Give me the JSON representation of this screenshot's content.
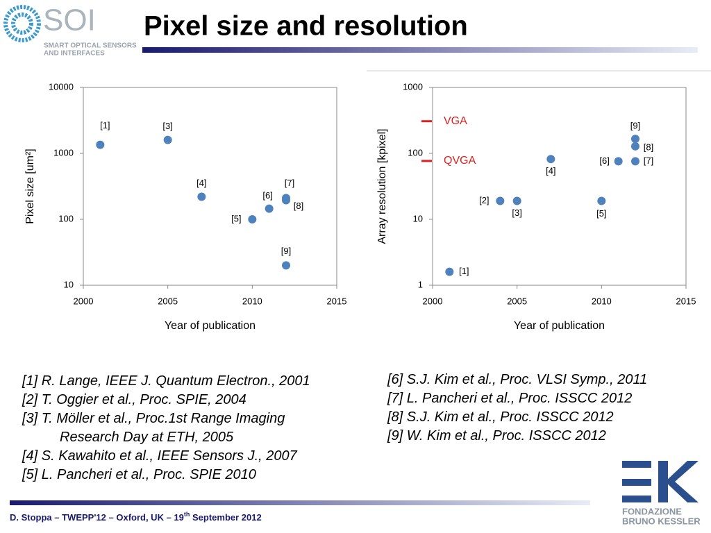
{
  "header": {
    "title": "Pixel size and resolution",
    "logo_main": "SOI",
    "logo_line1": "SMART OPTICAL SENSORS",
    "logo_line2": "AND INTERFACES"
  },
  "chart_data": [
    {
      "type": "scatter",
      "x_label": "Year of publication",
      "y_label": "Pixel size [um²]",
      "color": "#4f81bd",
      "log_y": true,
      "xlim": [
        2000,
        2015
      ],
      "xticks": [
        2000,
        2005,
        2010,
        2015
      ],
      "ylim": [
        10,
        10000
      ],
      "yticks": [
        10,
        100,
        1000,
        10000
      ],
      "x": [
        2001,
        2005,
        2007,
        2010,
        2011,
        2012,
        2012,
        2012
      ],
      "values": [
        1350,
        1600,
        220,
        100,
        145,
        210,
        195,
        20
      ],
      "point_labels": [
        "[1]",
        "[3]",
        "[4]",
        "[5]",
        "[6]",
        "[7]",
        "[8]",
        "[9]"
      ]
    },
    {
      "type": "scatter",
      "x_label": "Year of publication",
      "y_label": "Array resolution [kpixel]",
      "color": "#4f81bd",
      "log_y": true,
      "xlim": [
        2000,
        2015
      ],
      "xticks": [
        2000,
        2005,
        2010,
        2015
      ],
      "ylim": [
        1,
        1000
      ],
      "yticks": [
        1,
        10,
        100,
        1000
      ],
      "x": [
        2001,
        2004,
        2005,
        2007,
        2010,
        2011,
        2012,
        2012,
        2012
      ],
      "values": [
        1.6,
        19,
        19,
        82,
        19,
        76,
        76,
        128,
        166
      ],
      "point_labels": [
        "[1]",
        "[2]",
        "[3]",
        "[4]",
        "[5]",
        "[6]",
        "[7]",
        "[8]",
        "[9]"
      ],
      "reference_lines": [
        {
          "label": "VGA",
          "value": 307.2,
          "color": "#e02020"
        },
        {
          "label": "QVGA",
          "value": 76.8,
          "color": "#e02020"
        }
      ]
    }
  ],
  "references_left": [
    {
      "lines": [
        "[1] R. Lange, IEEE J. Quantum Electron., 2001"
      ]
    },
    {
      "lines": [
        "[2] T. Oggier et al., Proc. SPIE, 2004"
      ]
    },
    {
      "lines": [
        "[3] T. Möller et al., Proc.1st Range Imaging",
        "Research Day at ETH, 2005"
      ]
    },
    {
      "lines": [
        "[4] S. Kawahito et al., IEEE Sensors J., 2007"
      ]
    },
    {
      "lines": [
        "[5] L. Pancheri et al., Proc. SPIE 2010"
      ]
    }
  ],
  "references_right": [
    {
      "lines": [
        "[6] S.J. Kim et al., Proc. VLSI Symp., 2011"
      ]
    },
    {
      "lines": [
        "[7] L. Pancheri et al., Proc. ISSCC 2012"
      ]
    },
    {
      "lines": [
        "[8] S.J. Kim et al., Proc. ISSCC 2012"
      ]
    },
    {
      "lines": [
        "[9] W. Kim et al., Proc. ISSCC 2012"
      ]
    }
  ],
  "footer": {
    "text": "D. Stoppa – TWEPP'12 – Oxford, UK –  19",
    "sup": "th",
    "rest": " September 2012"
  },
  "fbk": {
    "line1": "FONDAZIONE",
    "line2": "BRUNO KESSLER"
  }
}
